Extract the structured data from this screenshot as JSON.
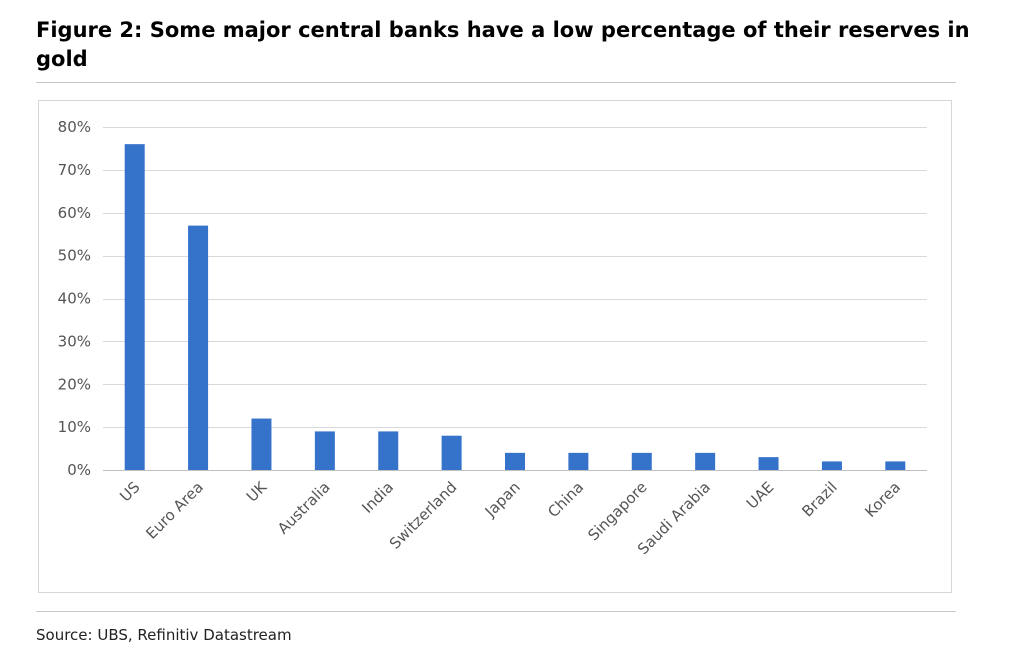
{
  "figure": {
    "title": "Figure 2: Some major central banks have a low percentage of their reserves in gold",
    "source": "Source: UBS, Refinitiv Datastream"
  },
  "chart_data": {
    "type": "bar",
    "title": "",
    "xlabel": "",
    "ylabel": "",
    "categories": [
      "US",
      "Euro Area",
      "UK",
      "Australia",
      "India",
      "Switzerland",
      "Japan",
      "China",
      "Singapore",
      "Saudi Arabia",
      "UAE",
      "Brazil",
      "Korea"
    ],
    "values": [
      0.76,
      0.57,
      0.12,
      0.09,
      0.09,
      0.08,
      0.04,
      0.04,
      0.04,
      0.04,
      0.03,
      0.02,
      0.02
    ],
    "ylim": [
      0,
      0.8
    ],
    "yticks": [
      0,
      0.1,
      0.2,
      0.3,
      0.4,
      0.5,
      0.6,
      0.7,
      0.8
    ],
    "ytick_labels": [
      "0%",
      "10%",
      "20%",
      "30%",
      "40%",
      "50%",
      "60%",
      "70%",
      "80%"
    ],
    "grid": true,
    "legend": "none",
    "bar_color": "#3572c9",
    "grid_color": "#d9d9d9"
  }
}
